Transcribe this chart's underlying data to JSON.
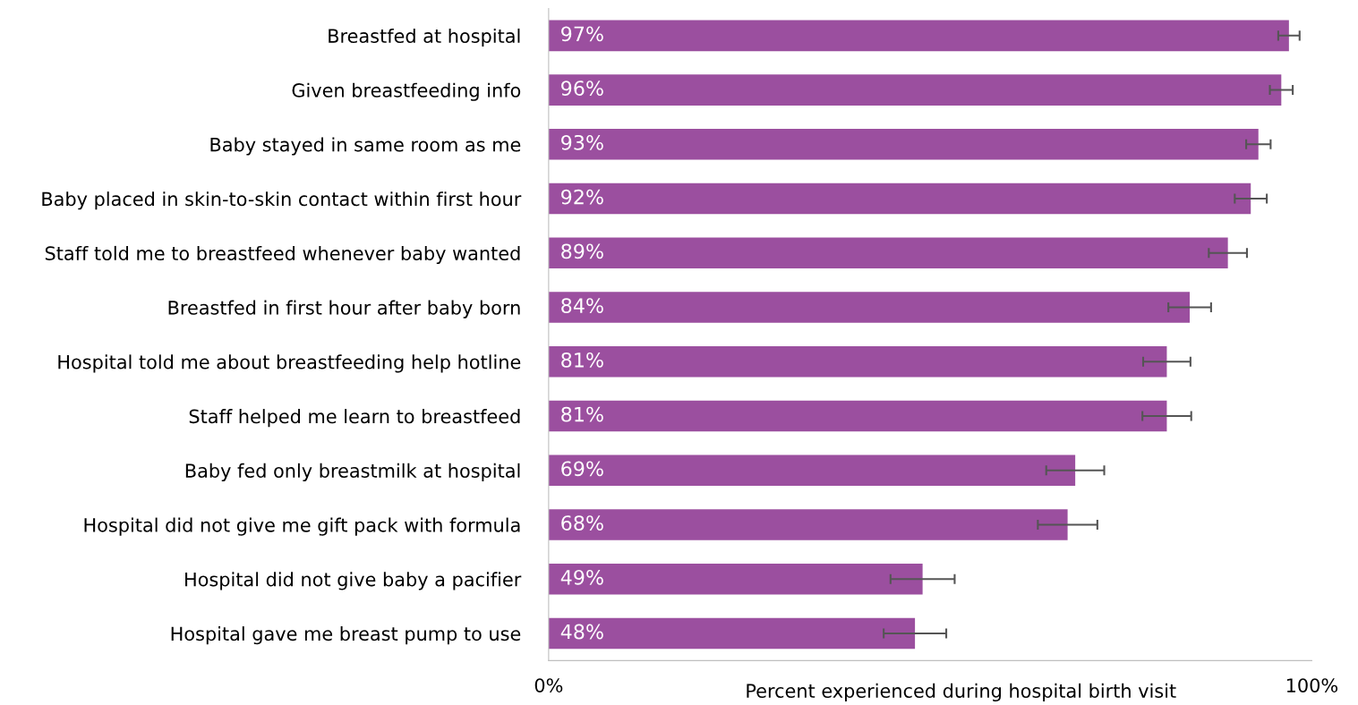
{
  "chart_data": {
    "type": "bar",
    "orientation": "horizontal",
    "xlabel": "Percent experienced during hospital birth visit",
    "categories": [
      "Breastfed at hospital",
      "Given breastfeeding info",
      "Baby stayed in same room as me",
      "Baby placed in skin-to-skin contact within first hour",
      "Staff told me to breastfeed whenever baby wanted",
      "Breastfed in first hour after baby born",
      "Hospital told me about breastfeeding help hotline",
      "Staff helped me learn to breastfeed",
      "Baby fed only breastmilk at hospital",
      "Hospital did not give me gift pack with formula",
      "Hospital did not give baby a pacifier",
      "Hospital gave me breast pump to use"
    ],
    "values": [
      97,
      96,
      93,
      92,
      89,
      84,
      81,
      81,
      69,
      68,
      49,
      48
    ],
    "errors": [
      1.4,
      1.5,
      1.6,
      2.1,
      2.5,
      2.8,
      3.1,
      3.2,
      3.8,
      3.9,
      4.2,
      4.1
    ],
    "value_labels": [
      "97%",
      "96%",
      "93%",
      "92%",
      "89%",
      "84%",
      "81%",
      "81%",
      "69%",
      "68%",
      "49%",
      "48%"
    ],
    "color": "#9b4f9f",
    "xlim": [
      0,
      100
    ],
    "xticks": [
      {
        "value": 0,
        "label": "0%"
      },
      {
        "value": 100,
        "label": "100%"
      }
    ],
    "grid": false,
    "legend": false
  }
}
